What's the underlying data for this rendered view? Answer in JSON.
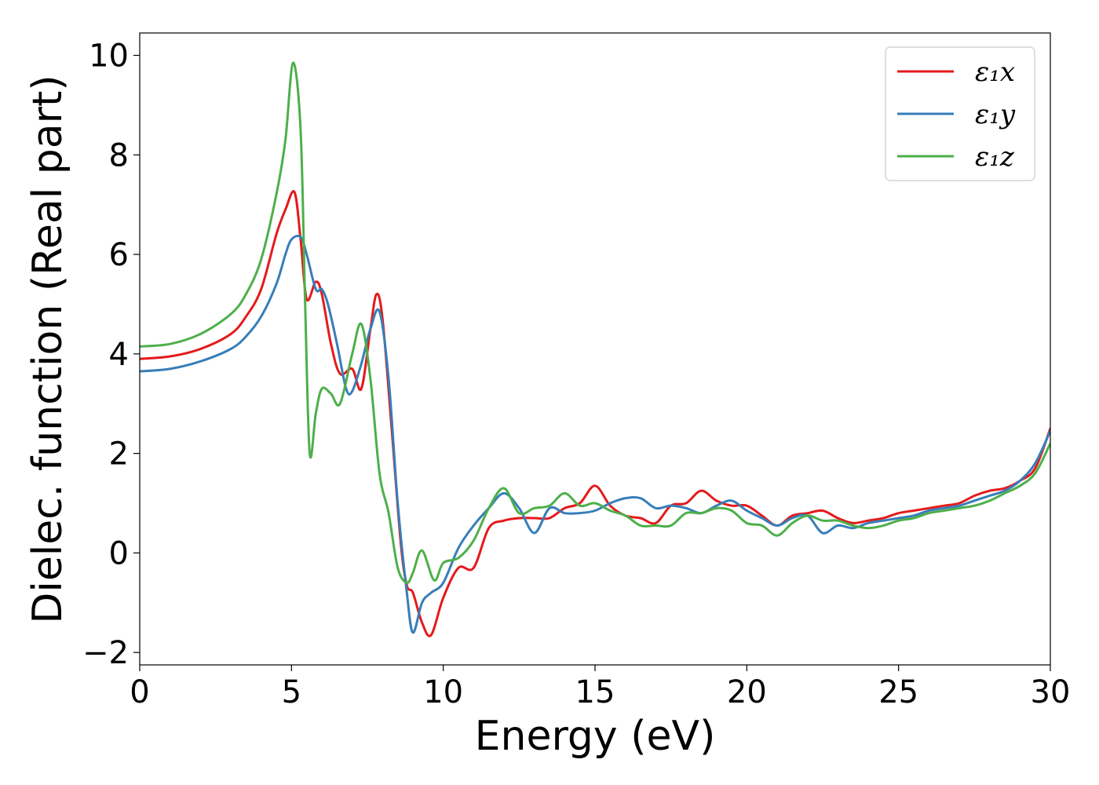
{
  "chart_data": {
    "type": "line",
    "xlabel": "Energy (eV)",
    "ylabel": "Dielec. function (Real part)",
    "xlim": [
      0,
      30
    ],
    "ylim": [
      -2.25,
      10.45
    ],
    "xticks": [
      0,
      5,
      10,
      15,
      20,
      25,
      30
    ],
    "xtick_labels": [
      "0",
      "5",
      "10",
      "15",
      "20",
      "25",
      "30"
    ],
    "yticks": [
      -2,
      0,
      2,
      4,
      6,
      8,
      10
    ],
    "ytick_labels": [
      "−2",
      "0",
      "2",
      "4",
      "6",
      "8",
      "10"
    ],
    "grid": false,
    "legend_position": "top-right",
    "series": [
      {
        "name": "ε₁x",
        "color": "#e41a1c",
        "x": [
          0,
          1,
          2,
          3,
          3.5,
          4,
          4.5,
          4.8,
          5.1,
          5.3,
          5.5,
          5.8,
          6.0,
          6.3,
          6.6,
          7.0,
          7.3,
          7.6,
          7.8,
          8.0,
          8.3,
          8.6,
          8.8,
          9.0,
          9.3,
          9.6,
          10.0,
          10.5,
          11.0,
          11.5,
          12.0,
          12.5,
          13.0,
          13.5,
          14.0,
          14.5,
          15.0,
          15.5,
          16.0,
          16.5,
          17.0,
          17.5,
          18.0,
          18.5,
          19.0,
          19.5,
          20.0,
          20.5,
          21.0,
          21.5,
          22.0,
          22.5,
          23.0,
          23.5,
          24.0,
          24.5,
          25.0,
          25.5,
          26.0,
          26.5,
          27.0,
          27.5,
          28.0,
          28.5,
          29.0,
          29.5,
          30.0
        ],
        "y": [
          3.9,
          3.95,
          4.1,
          4.4,
          4.75,
          5.3,
          6.4,
          6.9,
          7.25,
          6.3,
          5.1,
          5.45,
          5.2,
          4.2,
          3.6,
          3.7,
          3.3,
          4.5,
          5.2,
          4.7,
          2.5,
          0.2,
          -0.65,
          -0.8,
          -1.4,
          -1.65,
          -0.9,
          -0.3,
          -0.3,
          0.5,
          0.65,
          0.7,
          0.7,
          0.7,
          0.9,
          1.0,
          1.35,
          0.95,
          0.75,
          0.7,
          0.6,
          0.95,
          1.0,
          1.25,
          1.05,
          0.95,
          0.95,
          0.75,
          0.55,
          0.75,
          0.8,
          0.85,
          0.7,
          0.6,
          0.65,
          0.7,
          0.8,
          0.85,
          0.9,
          0.95,
          1.0,
          1.15,
          1.25,
          1.3,
          1.45,
          1.7,
          2.5
        ]
      },
      {
        "name": "ε₁y",
        "color": "#377eb8",
        "x": [
          0,
          1,
          2,
          3,
          3.5,
          4,
          4.5,
          4.8,
          5.0,
          5.3,
          5.5,
          5.8,
          6.0,
          6.2,
          6.5,
          6.8,
          7.0,
          7.3,
          7.6,
          7.9,
          8.2,
          8.5,
          8.8,
          9.0,
          9.3,
          9.6,
          10.0,
          10.5,
          11.0,
          11.5,
          12.0,
          12.5,
          13.0,
          13.5,
          14.0,
          14.5,
          15.0,
          15.5,
          16.0,
          16.5,
          17.0,
          17.5,
          18.0,
          18.5,
          19.0,
          19.5,
          20.0,
          20.5,
          21.0,
          21.5,
          22.0,
          22.5,
          23.0,
          23.5,
          24.0,
          24.5,
          25.0,
          25.5,
          26.0,
          26.5,
          27.0,
          27.5,
          28.0,
          28.5,
          29.0,
          29.5,
          30.0
        ],
        "y": [
          3.65,
          3.7,
          3.85,
          4.1,
          4.35,
          4.75,
          5.4,
          6.0,
          6.3,
          6.35,
          6.0,
          5.3,
          5.3,
          5.0,
          4.2,
          3.3,
          3.25,
          3.8,
          4.5,
          4.85,
          3.5,
          1.0,
          -0.8,
          -1.6,
          -1.0,
          -0.8,
          -0.6,
          0.1,
          0.55,
          0.9,
          1.2,
          0.9,
          0.4,
          0.9,
          0.8,
          0.8,
          0.85,
          1.0,
          1.1,
          1.1,
          0.9,
          0.95,
          0.9,
          0.8,
          0.95,
          1.05,
          0.85,
          0.7,
          0.55,
          0.7,
          0.75,
          0.4,
          0.55,
          0.5,
          0.6,
          0.65,
          0.7,
          0.75,
          0.85,
          0.9,
          0.95,
          1.05,
          1.15,
          1.25,
          1.45,
          1.8,
          2.45
        ]
      },
      {
        "name": "ε₁z",
        "color": "#4daf4a",
        "x": [
          0,
          1,
          2,
          3,
          3.5,
          4,
          4.5,
          4.8,
          5.05,
          5.3,
          5.45,
          5.6,
          5.8,
          6.0,
          6.3,
          6.6,
          7.0,
          7.3,
          7.6,
          7.9,
          8.2,
          8.5,
          8.8,
          9.0,
          9.3,
          9.7,
          10.0,
          10.5,
          11.0,
          11.5,
          12.0,
          12.5,
          13.0,
          13.5,
          14.0,
          14.5,
          15.0,
          15.5,
          16.0,
          16.5,
          17.0,
          17.5,
          18.0,
          18.5,
          19.0,
          19.5,
          20.0,
          20.5,
          21.0,
          21.5,
          22.0,
          22.5,
          23.0,
          23.5,
          24.0,
          24.5,
          25.0,
          25.5,
          26.0,
          26.5,
          27.0,
          27.5,
          28.0,
          28.5,
          29.0,
          29.5,
          30.0
        ],
        "y": [
          4.15,
          4.2,
          4.4,
          4.8,
          5.2,
          5.9,
          7.2,
          8.3,
          9.85,
          8.5,
          5.0,
          2.0,
          2.8,
          3.3,
          3.2,
          3.0,
          4.0,
          4.6,
          3.5,
          1.6,
          0.8,
          -0.3,
          -0.6,
          -0.4,
          0.05,
          -0.55,
          -0.2,
          -0.1,
          0.25,
          0.9,
          1.3,
          0.8,
          0.9,
          0.95,
          1.2,
          0.95,
          1.0,
          0.85,
          0.75,
          0.55,
          0.55,
          0.55,
          0.8,
          0.8,
          0.9,
          0.85,
          0.6,
          0.55,
          0.35,
          0.6,
          0.75,
          0.65,
          0.65,
          0.55,
          0.5,
          0.55,
          0.65,
          0.7,
          0.8,
          0.85,
          0.9,
          0.95,
          1.05,
          1.2,
          1.35,
          1.6,
          2.2
        ]
      }
    ]
  }
}
